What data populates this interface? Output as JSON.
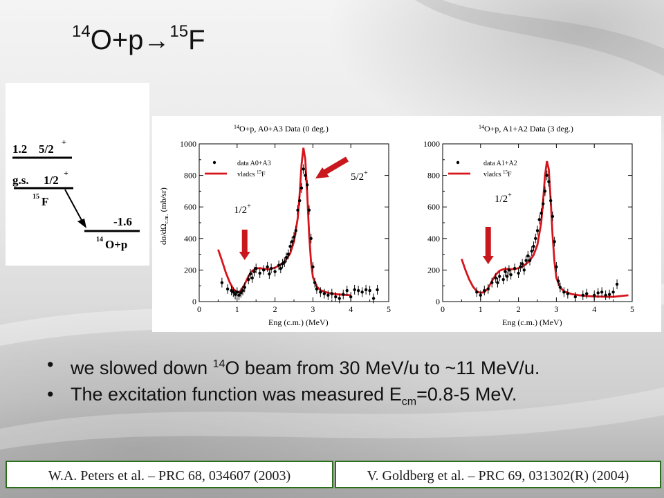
{
  "title": {
    "pre_mass": "14",
    "pre_sym": "O+p",
    "arrow": "→",
    "post_mass": "15",
    "post_sym": "F"
  },
  "level_scheme": {
    "upper_energy": "1.2",
    "upper_spin": "5/2",
    "upper_parity": "+",
    "gs_label": "g.s.",
    "gs_spin": "1/2",
    "gs_parity": "+",
    "nucleus_mass": "15",
    "nucleus_sym": "F",
    "threshold_energy": "-1.6",
    "threshold_mass": "14",
    "threshold_sym": "O+p"
  },
  "colors": {
    "fit_line": "#d6141b",
    "arrow": "#c8181e",
    "reference_border": "#2b6e1c"
  },
  "chart_data": [
    {
      "type": "scatter",
      "title_mass": "14",
      "title_text": "O+p, A0+A3 Data (0 deg.)",
      "xlabel": "Eng (c.m.) (MeV)",
      "ylabel": "dσ/dΩ",
      "ylabel_sub": "c.m.",
      "ylabel_unit": " (mb/sr)",
      "xlim": [
        0,
        5
      ],
      "ylim": [
        0,
        1000
      ],
      "xticks": [
        "0",
        "1",
        "2",
        "3",
        "4",
        "5"
      ],
      "yticks": [
        "0",
        "200",
        "400",
        "600",
        "800",
        "1000"
      ],
      "legend": {
        "data": "data A0+A3",
        "fit_text": "vladcs ",
        "fit_mass": "15",
        "fit_sym": "F",
        "position": "top-left"
      },
      "annotations": [
        {
          "spin": "1/2",
          "parity": "+",
          "x": 1.2,
          "arrow_dir": "down"
        },
        {
          "spin": "5/2",
          "parity": "+",
          "x": 2.9,
          "arrow_dir": "down-left"
        }
      ],
      "points": [
        [
          0.6,
          120
        ],
        [
          0.75,
          80
        ],
        [
          0.85,
          70
        ],
        [
          0.9,
          60
        ],
        [
          0.95,
          45
        ],
        [
          1.0,
          60
        ],
        [
          1.05,
          40
        ],
        [
          1.1,
          55
        ],
        [
          1.15,
          70
        ],
        [
          1.2,
          90
        ],
        [
          1.3,
          140
        ],
        [
          1.35,
          175
        ],
        [
          1.4,
          150
        ],
        [
          1.45,
          190
        ],
        [
          1.5,
          210
        ],
        [
          1.6,
          180
        ],
        [
          1.7,
          200
        ],
        [
          1.8,
          220
        ],
        [
          1.85,
          175
        ],
        [
          1.9,
          210
        ],
        [
          2.0,
          190
        ],
        [
          2.1,
          230
        ],
        [
          2.15,
          210
        ],
        [
          2.2,
          240
        ],
        [
          2.25,
          250
        ],
        [
          2.3,
          280
        ],
        [
          2.35,
          300
        ],
        [
          2.4,
          350
        ],
        [
          2.45,
          380
        ],
        [
          2.5,
          410
        ],
        [
          2.55,
          450
        ],
        [
          2.6,
          580
        ],
        [
          2.65,
          640
        ],
        [
          2.7,
          720
        ],
        [
          2.75,
          840
        ],
        [
          2.8,
          800
        ],
        [
          2.85,
          740
        ],
        [
          2.9,
          580
        ],
        [
          2.95,
          400
        ],
        [
          3.0,
          220
        ],
        [
          3.05,
          120
        ],
        [
          3.1,
          80
        ],
        [
          3.2,
          60
        ],
        [
          3.3,
          50
        ],
        [
          3.4,
          40
        ],
        [
          3.5,
          50
        ],
        [
          3.6,
          30
        ],
        [
          3.7,
          20
        ],
        [
          3.8,
          45
        ],
        [
          3.9,
          70
        ],
        [
          4.0,
          30
        ],
        [
          4.1,
          75
        ],
        [
          4.2,
          70
        ],
        [
          4.3,
          60
        ],
        [
          4.4,
          75
        ],
        [
          4.5,
          70
        ],
        [
          4.6,
          20
        ],
        [
          4.7,
          75
        ]
      ],
      "fit": [
        [
          0.5,
          330
        ],
        [
          0.6,
          260
        ],
        [
          0.7,
          185
        ],
        [
          0.8,
          125
        ],
        [
          0.9,
          80
        ],
        [
          1.0,
          60
        ],
        [
          1.05,
          58
        ],
        [
          1.1,
          70
        ],
        [
          1.2,
          110
        ],
        [
          1.3,
          160
        ],
        [
          1.4,
          195
        ],
        [
          1.5,
          210
        ],
        [
          1.6,
          212
        ],
        [
          1.7,
          208
        ],
        [
          1.8,
          205
        ],
        [
          1.9,
          208
        ],
        [
          2.0,
          215
        ],
        [
          2.1,
          228
        ],
        [
          2.2,
          245
        ],
        [
          2.3,
          268
        ],
        [
          2.4,
          305
        ],
        [
          2.5,
          380
        ],
        [
          2.6,
          530
        ],
        [
          2.65,
          680
        ],
        [
          2.7,
          870
        ],
        [
          2.75,
          975
        ],
        [
          2.8,
          900
        ],
        [
          2.85,
          680
        ],
        [
          2.9,
          430
        ],
        [
          2.95,
          250
        ],
        [
          3.0,
          155
        ],
        [
          3.1,
          95
        ],
        [
          3.2,
          72
        ],
        [
          3.4,
          55
        ],
        [
          3.6,
          47
        ],
        [
          3.8,
          43
        ],
        [
          4.0,
          40
        ]
      ]
    },
    {
      "type": "scatter",
      "title_mass": "14",
      "title_text": "O+p, A1+A2 Data (3 deg.)",
      "xlabel": "Eng (c.m.) (MeV)",
      "xlim": [
        0,
        5
      ],
      "ylim": [
        0,
        1000
      ],
      "xticks": [
        "0",
        "1",
        "2",
        "3",
        "4",
        "5"
      ],
      "yticks": [
        "0",
        "200",
        "400",
        "600",
        "800",
        "1000"
      ],
      "legend": {
        "data": "data A1+A2",
        "fit_text": "vladcs ",
        "fit_mass": "15",
        "fit_sym": "F",
        "position": "top-left"
      },
      "annotations": [
        {
          "spin": "1/2",
          "parity": "+",
          "x": 1.2,
          "arrow_dir": "down"
        }
      ],
      "points": [
        [
          0.9,
          60
        ],
        [
          1.0,
          40
        ],
        [
          1.1,
          70
        ],
        [
          1.2,
          80
        ],
        [
          1.3,
          120
        ],
        [
          1.4,
          150
        ],
        [
          1.45,
          120
        ],
        [
          1.5,
          160
        ],
        [
          1.6,
          140
        ],
        [
          1.65,
          190
        ],
        [
          1.7,
          160
        ],
        [
          1.75,
          200
        ],
        [
          1.8,
          170
        ],
        [
          1.9,
          210
        ],
        [
          2.0,
          180
        ],
        [
          2.05,
          220
        ],
        [
          2.1,
          240
        ],
        [
          2.15,
          200
        ],
        [
          2.2,
          260
        ],
        [
          2.25,
          290
        ],
        [
          2.3,
          260
        ],
        [
          2.35,
          320
        ],
        [
          2.4,
          350
        ],
        [
          2.45,
          400
        ],
        [
          2.5,
          450
        ],
        [
          2.55,
          520
        ],
        [
          2.6,
          560
        ],
        [
          2.65,
          620
        ],
        [
          2.7,
          700
        ],
        [
          2.75,
          800
        ],
        [
          2.8,
          760
        ],
        [
          2.85,
          640
        ],
        [
          2.9,
          540
        ],
        [
          2.95,
          380
        ],
        [
          3.0,
          220
        ],
        [
          3.05,
          130
        ],
        [
          3.1,
          90
        ],
        [
          3.2,
          60
        ],
        [
          3.3,
          50
        ],
        [
          3.5,
          30
        ],
        [
          3.7,
          40
        ],
        [
          3.8,
          50
        ],
        [
          4.0,
          40
        ],
        [
          4.1,
          55
        ],
        [
          4.2,
          60
        ],
        [
          4.3,
          40
        ],
        [
          4.4,
          45
        ],
        [
          4.5,
          60
        ],
        [
          4.6,
          110
        ]
      ],
      "fit": [
        [
          0.5,
          270
        ],
        [
          0.6,
          200
        ],
        [
          0.7,
          140
        ],
        [
          0.8,
          95
        ],
        [
          0.9,
          65
        ],
        [
          1.0,
          55
        ],
        [
          1.1,
          60
        ],
        [
          1.2,
          85
        ],
        [
          1.3,
          130
        ],
        [
          1.4,
          170
        ],
        [
          1.5,
          195
        ],
        [
          1.6,
          205
        ],
        [
          1.7,
          207
        ],
        [
          1.8,
          205
        ],
        [
          1.9,
          206
        ],
        [
          2.0,
          212
        ],
        [
          2.1,
          222
        ],
        [
          2.2,
          238
        ],
        [
          2.3,
          260
        ],
        [
          2.4,
          295
        ],
        [
          2.5,
          360
        ],
        [
          2.6,
          500
        ],
        [
          2.65,
          640
        ],
        [
          2.7,
          800
        ],
        [
          2.75,
          890
        ],
        [
          2.8,
          840
        ],
        [
          2.85,
          640
        ],
        [
          2.9,
          420
        ],
        [
          2.95,
          250
        ],
        [
          3.0,
          150
        ],
        [
          3.1,
          90
        ],
        [
          3.2,
          65
        ],
        [
          3.4,
          48
        ],
        [
          3.6,
          40
        ],
        [
          3.8,
          35
        ],
        [
          4.0,
          32
        ],
        [
          4.5,
          30
        ],
        [
          4.9,
          40
        ]
      ]
    }
  ],
  "bullets": {
    "b1_pre": "we slowed down ",
    "b1_mass": "14",
    "b1_post": "O beam from 30 MeV/u to ~11 MeV/u.",
    "b2_pre": "The excitation function was measured E",
    "b2_sub": "cm",
    "b2_post": "=0.8-5 MeV.",
    "marker": "•"
  },
  "references": {
    "left": "W.A. Peters et al. – PRC 68, 034607 (2003)",
    "right": "V. Goldberg et al. – PRC 69, 031302(R) (2004)"
  }
}
